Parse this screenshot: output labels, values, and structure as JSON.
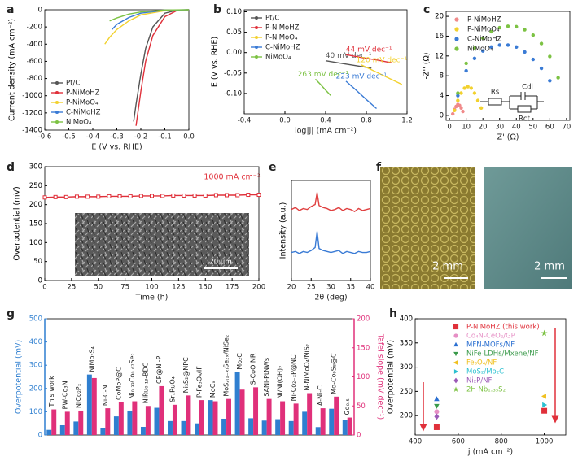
{
  "panel_labels": [
    "a",
    "b",
    "c",
    "d",
    "e",
    "f",
    "g",
    "h"
  ],
  "chart_data": [
    {
      "type": "line",
      "xlabel": "E (V vs. RHE)",
      "ylabel": "Current density (mA cm⁻²)",
      "xlim": [
        -0.6,
        0
      ],
      "xticks": [
        -0.6,
        -0.5,
        -0.4,
        -0.3,
        -0.2,
        -0.1,
        {
          "value": 0,
          "label": "0.0"
        }
      ],
      "ylim": [
        -1400,
        0
      ],
      "yticks": [
        0,
        -200,
        -400,
        -600,
        -800,
        -1000,
        -1200,
        -1400
      ],
      "legend": "lower-left",
      "series": [
        {
          "name": "Pt/C",
          "color": "#555555",
          "x": [
            0,
            -0.05,
            -0.1,
            -0.15,
            -0.18,
            -0.2,
            -0.22,
            -0.23
          ],
          "values": [
            0,
            -5,
            -40,
            -200,
            -450,
            -750,
            -1100,
            -1300
          ]
        },
        {
          "name": "P-NiMoHZ",
          "color": "#e0303a",
          "x": [
            0,
            -0.05,
            -0.1,
            -0.15,
            -0.18,
            -0.2,
            -0.21,
            -0.22
          ],
          "values": [
            0,
            -10,
            -80,
            -300,
            -600,
            -950,
            -1150,
            -1350
          ]
        },
        {
          "name": "P-NiMoO₄",
          "color": "#f2d12e",
          "x": [
            0,
            -0.1,
            -0.2,
            -0.25,
            -0.3,
            -0.33,
            -0.35
          ],
          "values": [
            0,
            -10,
            -60,
            -130,
            -230,
            -320,
            -400
          ]
        },
        {
          "name": "C-NiMoHZ",
          "color": "#3a7bd5",
          "x": [
            0,
            -0.1,
            -0.2,
            -0.25,
            -0.3,
            -0.32
          ],
          "values": [
            0,
            -5,
            -40,
            -90,
            -170,
            -230
          ]
        },
        {
          "name": "NiMoO₄",
          "color": "#7cc243",
          "x": [
            0,
            -0.1,
            -0.2,
            -0.25,
            -0.3,
            -0.33
          ],
          "values": [
            0,
            -3,
            -25,
            -50,
            -95,
            -130
          ]
        }
      ]
    },
    {
      "type": "line",
      "xlabel": "log|j| (mA cm⁻²)",
      "ylabel": "E (V vs. RHE)",
      "xlim": [
        -0.4,
        1.2
      ],
      "xticks": [
        -0.4,
        {
          "value": 0,
          "label": "0.0"
        },
        0.4,
        0.8,
        1.2
      ],
      "ylim": [
        -0.15,
        0.105
      ],
      "yticks": [
        {
          "value": 0.1,
          "label": "0.10"
        },
        {
          "value": 0.05,
          "label": "0.05"
        },
        {
          "value": 0,
          "label": "0.00"
        },
        {
          "value": -0.05,
          "label": "-0.05"
        },
        {
          "value": -0.1,
          "label": "-0.10"
        }
      ],
      "legend": "upper-left",
      "series": [
        {
          "name": "Pt/C",
          "color": "#555555",
          "x": [
            0.4,
            0.55,
            0.7,
            0.85
          ],
          "values": [
            -0.02,
            -0.026,
            -0.032,
            -0.038
          ],
          "annotation": "40 mV dec⁻¹"
        },
        {
          "name": "P-NiMoHZ",
          "color": "#e0303a",
          "x": [
            0.6,
            0.75,
            0.9,
            1.05
          ],
          "values": [
            -0.005,
            -0.012,
            -0.018,
            -0.025
          ],
          "annotation": "44 mV dec⁻¹"
        },
        {
          "name": "P-NiMoO₄",
          "color": "#f2d12e",
          "x": [
            0.75,
            0.9,
            1.05,
            1.15
          ],
          "values": [
            -0.03,
            -0.048,
            -0.066,
            -0.078
          ],
          "annotation": "120 mV dec⁻¹"
        },
        {
          "name": "C-NiMoHZ",
          "color": "#3a7bd5",
          "x": [
            0.6,
            0.7,
            0.8,
            0.9
          ],
          "values": [
            -0.07,
            -0.092,
            -0.115,
            -0.137
          ],
          "annotation": "223 mV dec⁻¹"
        },
        {
          "name": "NiMoO₄",
          "color": "#7cc243",
          "x": [
            0.3,
            0.35,
            0.4,
            0.45
          ],
          "values": [
            -0.065,
            -0.078,
            -0.092,
            -0.105
          ],
          "annotation": "263 mV dec⁻¹"
        }
      ]
    },
    {
      "type": "scatter",
      "xlabel": "Z' (Ω)",
      "ylabel": "-Z'' (Ω)",
      "xlim": [
        -2,
        72
      ],
      "xticks": [
        0,
        10,
        20,
        30,
        40,
        50,
        60,
        70
      ],
      "ylim": [
        -1,
        21
      ],
      "yticks": [
        0,
        4,
        8,
        12,
        16,
        20
      ],
      "legend": "upper-left",
      "circuit_labels": [
        "Rs",
        "Cdl",
        "Rct"
      ],
      "series": [
        {
          "name": "P-NiMoHZ",
          "color": "#f08a8a",
          "marker": "circle",
          "x": [
            2,
            3,
            4,
            5,
            6,
            7,
            8
          ],
          "values": [
            0.3,
            1.2,
            1.8,
            2.2,
            2,
            1.5,
            0.8
          ]
        },
        {
          "name": "P-NiMoO₄",
          "color": "#f2d12e",
          "marker": "circle",
          "x": [
            3,
            5,
            7,
            9,
            11,
            13,
            15,
            17,
            19
          ],
          "values": [
            1,
            3,
            4.5,
            5.5,
            5.8,
            5.5,
            4.5,
            3,
            1.5
          ]
        },
        {
          "name": "C-NiMoHZ",
          "color": "#3a7bd5",
          "marker": "circle",
          "x": [
            5,
            10,
            15,
            20,
            25,
            30,
            35,
            40,
            45,
            50,
            55,
            60
          ],
          "values": [
            4,
            9,
            11.5,
            13,
            13.8,
            14.2,
            14.2,
            13.8,
            12.8,
            11.3,
            9.5,
            7
          ]
        },
        {
          "name": "NiMoO₄",
          "color": "#7cc243",
          "marker": "circle",
          "x": [
            5,
            10,
            15,
            20,
            25,
            30,
            35,
            40,
            45,
            50,
            55,
            60,
            65
          ],
          "values": [
            4.5,
            10.5,
            13.6,
            15.6,
            16.9,
            17.7,
            18,
            17.9,
            17.3,
            16.2,
            14.5,
            11.9,
            7.6
          ]
        }
      ]
    },
    {
      "type": "line",
      "xlabel": "Time (h)",
      "ylabel": "Overpotential (mV)",
      "annotation": "1000 mA cm⁻²",
      "inset_scale": "20 μm",
      "xlim": [
        0,
        200
      ],
      "xticks": [
        0,
        25,
        50,
        75,
        100,
        125,
        150,
        175,
        200
      ],
      "ylim": [
        0,
        300
      ],
      "yticks": [
        0,
        50,
        100,
        150,
        200,
        250,
        300
      ],
      "series": [
        {
          "color": "#e0303a",
          "marker": "square-open",
          "x": [
            0,
            10,
            20,
            30,
            40,
            50,
            60,
            70,
            80,
            90,
            100,
            110,
            120,
            130,
            140,
            150,
            160,
            170,
            180,
            190,
            200
          ],
          "values": [
            219,
            220,
            220,
            221,
            221,
            221,
            222,
            222,
            222,
            223,
            223,
            223,
            224,
            224,
            224,
            224,
            225,
            225,
            225,
            226,
            226
          ]
        }
      ]
    },
    {
      "type": "line",
      "xlabel": "2θ (deg)",
      "ylabel": "Intensity (a.u.)",
      "xlim": [
        20,
        40
      ],
      "xticks": [
        20,
        25,
        30,
        35,
        40
      ],
      "ylim": [
        0,
        10
      ],
      "series": [
        {
          "color": "#e04040",
          "x": [
            20,
            21,
            22,
            23,
            24,
            25,
            26,
            26.5,
            27,
            28,
            29,
            30,
            31,
            32,
            33,
            34,
            35,
            36,
            37,
            38,
            39,
            40
          ],
          "values": [
            7.1,
            7.3,
            7,
            7.2,
            7.1,
            7.4,
            7.6,
            8.8,
            7.5,
            7.3,
            7.2,
            7,
            7.1,
            7.3,
            7,
            7.2,
            7.1,
            6.9,
            7.2,
            7,
            7.1,
            7.2
          ]
        },
        {
          "color": "#3a7bd5",
          "x": [
            20,
            21,
            22,
            23,
            24,
            25,
            26,
            26.5,
            27,
            28,
            29,
            30,
            31,
            32,
            33,
            34,
            35,
            36,
            37,
            38,
            39,
            40
          ],
          "values": [
            2.8,
            2.9,
            2.7,
            2.9,
            2.8,
            3,
            3.3,
            4.9,
            3.2,
            3,
            2.9,
            2.8,
            2.9,
            3,
            2.7,
            2.9,
            2.8,
            2.7,
            2.9,
            2.8,
            2.8,
            2.9
          ]
        }
      ]
    },
    {
      "type": "bar",
      "ylabel": "Overpotential (mV)",
      "y2label": "Tafel slope (mV dec⁻¹)",
      "ylim": [
        0,
        500
      ],
      "yticks": [
        0,
        100,
        200,
        300,
        400,
        500
      ],
      "y2lim": [
        0,
        200
      ],
      "y2ticks": [
        0,
        50,
        100,
        150,
        200
      ],
      "categories": [
        "This work",
        "PW-Co₃N",
        "NiCo₂Pₓ",
        "NiMo₃S₄",
        "Ni-C-N",
        "CoMoP@C",
        "Ni₀.₃₃Co₀.₆₇Se₂",
        "NiRu₀.₁₃-BDC",
        "CP@Ni-P",
        "SrₓRuO₄",
        "Ni₅S₂@NPC",
        "P-Fe₃O₄/IF",
        "MoCₓ",
        "MoS₂₍₁₋ₓ₎Se₂ₓ/NiSe₂",
        "Mo₂C",
        "S-CoO NR",
        "SANi-PtNWs",
        "Ni/Ni(OH)₂",
        "Ni-Co₂₋ₓP@NC",
        "N-NiMoO₄/NiS₂",
        "A-Ni-C",
        "Mo-Co₉S₈@C",
        "Gd₀.₅"
      ],
      "series": [
        {
          "color": "#2f7fd0",
          "axis": "y",
          "values": [
            22,
            42,
            58,
            260,
            30,
            80,
            105,
            35,
            117,
            60,
            60,
            50,
            150,
            70,
            270,
            72,
            62,
            68,
            60,
            100,
            34,
            113,
            65
          ]
        },
        {
          "color": "#e0307a",
          "axis": "y2",
          "values": [
            44,
            40,
            42,
            98,
            46,
            56,
            58,
            50,
            84,
            52,
            68,
            60,
            58,
            62,
            78,
            82,
            62,
            58,
            54,
            72,
            46,
            66,
            30
          ]
        }
      ]
    },
    {
      "type": "scatter",
      "xlabel": "j (mA cm⁻²)",
      "ylabel": "Overpotential (mV)",
      "xlim": [
        400,
        1100
      ],
      "xticks": [
        400,
        600,
        800,
        1000
      ],
      "ylim": [
        160,
        400
      ],
      "yticks": [
        200,
        250,
        300,
        350,
        400
      ],
      "legend": "upper-right",
      "legend_colored_text": true,
      "series": [
        {
          "name": "P-NiMoHZ (this work)",
          "color": "#e0303a",
          "marker": "square",
          "x": [
            500,
            1000
          ],
          "values": [
            176,
            210
          ]
        },
        {
          "name": "Co₄N-CeO₂/GP",
          "color": "#e68fc5",
          "marker": "circle",
          "x": [
            500
          ],
          "values": [
            208
          ]
        },
        {
          "name": "MFN-MOFs/NF",
          "color": "#2a6fd1",
          "marker": "triangle",
          "x": [
            500
          ],
          "values": [
            234
          ]
        },
        {
          "name": "NiFe-LDHs/Mxene/NF",
          "color": "#3a9a4a",
          "marker": "triangle-down",
          "x": [
            500
          ],
          "values": [
            220
          ]
        },
        {
          "name": "Fe₃O₄/NF",
          "color": "#f0c020",
          "marker": "triangle-left",
          "x": [
            1000
          ],
          "values": [
            240
          ]
        },
        {
          "name": "MoS₂/Mo₂C",
          "color": "#2bc0d0",
          "marker": "triangle-right",
          "x": [
            1000
          ],
          "values": [
            222
          ]
        },
        {
          "name": "Ni₂P/NF",
          "color": "#9b59b6",
          "marker": "diamond",
          "x": [
            500
          ],
          "values": [
            198
          ]
        },
        {
          "name": "2H Nb₁.₃₅S₂",
          "color": "#7cc243",
          "marker": "star",
          "x": [
            1000
          ],
          "values": [
            370
          ]
        }
      ]
    }
  ],
  "images": {
    "scale_labels": [
      "2 mm",
      "2 mm"
    ]
  }
}
